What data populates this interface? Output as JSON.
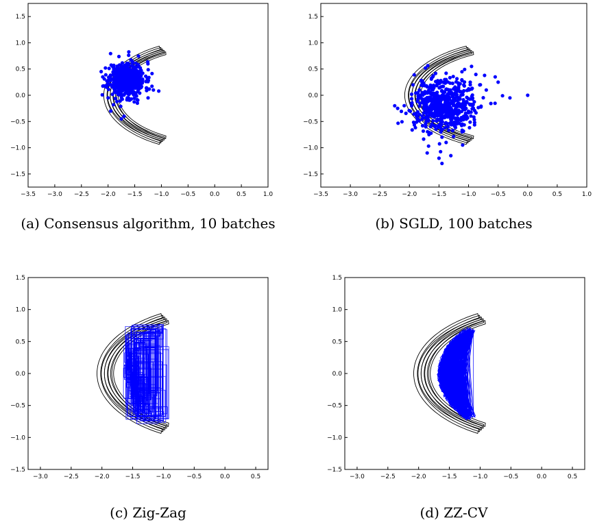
{
  "chart_data": [
    {
      "type": "scatter",
      "caption": "(a) Consensus algorithm, 10 batches",
      "xlim": [
        -3.5,
        1.0
      ],
      "ylim": [
        -1.75,
        1.75
      ],
      "xticks": [
        "-3.5",
        "-3.0",
        "-2.5",
        "-2.0",
        "-1.5",
        "-1.0",
        "-0.5",
        "0.0",
        "0.5",
        "1.0"
      ],
      "yticks": [
        "1.5",
        "1.0",
        "0.5",
        "0.0",
        "-0.5",
        "-1.0",
        "-1.5"
      ],
      "contours": true,
      "marker_color": "#0000ff",
      "point_cloud": {
        "center": [
          -1.65,
          0.3
        ],
        "spread": [
          0.17,
          0.17
        ],
        "count": 520
      },
      "outliers": [
        [
          -2.05,
          0.52
        ],
        [
          -2.1,
          0.35
        ],
        [
          -1.9,
          -0.18
        ],
        [
          -1.95,
          -0.3
        ],
        [
          -1.75,
          -0.45
        ],
        [
          -1.05,
          0.08
        ],
        [
          -1.15,
          0.1
        ],
        [
          -1.45,
          -0.15
        ],
        [
          -2.0,
          -0.05
        ],
        [
          -1.55,
          0.65
        ],
        [
          -1.7,
          -0.4
        ],
        [
          -1.25,
          -0.05
        ]
      ]
    },
    {
      "type": "scatter",
      "caption": "(b) SGLD, 100 batches",
      "xlim": [
        -3.5,
        1.0
      ],
      "ylim": [
        -1.75,
        1.75
      ],
      "xticks": [
        "-3.5",
        "-3.0",
        "-2.5",
        "-2.0",
        "-1.5",
        "-1.0",
        "-0.5",
        "0.0",
        "0.5",
        "1.0"
      ],
      "yticks": [
        "1.5",
        "1.0",
        "0.5",
        "0.0",
        "-0.5",
        "-1.0",
        "-1.5"
      ],
      "contours": true,
      "marker_color": "#0000ff",
      "point_cloud": {
        "center": [
          -1.4,
          -0.2
        ],
        "spread": [
          0.26,
          0.26
        ],
        "count": 620
      },
      "outliers": [
        [
          0.0,
          0.0
        ],
        [
          -0.3,
          -0.05
        ],
        [
          -0.55,
          0.35
        ],
        [
          -0.5,
          0.25
        ],
        [
          -0.95,
          0.55
        ],
        [
          -2.25,
          -0.2
        ],
        [
          -2.2,
          -0.25
        ],
        [
          -1.45,
          -1.3
        ],
        [
          -1.5,
          -1.2
        ],
        [
          -1.3,
          -1.15
        ],
        [
          -0.7,
          0.1
        ],
        [
          -0.8,
          0.2
        ],
        [
          -1.7,
          -1.1
        ],
        [
          -1.1,
          -0.95
        ]
      ]
    },
    {
      "type": "line",
      "caption": "(c) Zig-Zag",
      "xlim": [
        -3.2,
        0.7
      ],
      "ylim": [
        -1.5,
        1.5
      ],
      "xticks": [
        "-3.0",
        "-2.5",
        "-2.0",
        "-1.5",
        "-1.0",
        "-0.5",
        "0.0",
        "0.5"
      ],
      "yticks": [
        "1.5",
        "1.0",
        "0.5",
        "0.0",
        "-0.5",
        "-1.0",
        "-1.5"
      ],
      "contours": true,
      "line_color": "#0000ff",
      "trajectory": {
        "style": "zigzag",
        "band_min": 0.85,
        "band_max": 1.08,
        "range_deg": [
          -45,
          45
        ],
        "steps": 360,
        "seed": 3
      }
    },
    {
      "type": "line",
      "caption": "(d) ZZ-CV",
      "xlim": [
        -3.2,
        0.7
      ],
      "ylim": [
        -1.5,
        1.5
      ],
      "xticks": [
        "-3.0",
        "-2.5",
        "-2.0",
        "-1.5",
        "-1.0",
        "-0.5",
        "0.0",
        "0.5"
      ],
      "yticks": [
        "1.5",
        "1.0",
        "0.5",
        "0.0",
        "-0.5",
        "-1.0",
        "-1.5"
      ],
      "contours": true,
      "line_color": "#0000ff",
      "trajectory": {
        "style": "dense",
        "band_min": 0.92,
        "band_max": 1.12,
        "range_deg": [
          -40,
          40
        ],
        "steps": 1400,
        "seed": 7
      }
    }
  ]
}
